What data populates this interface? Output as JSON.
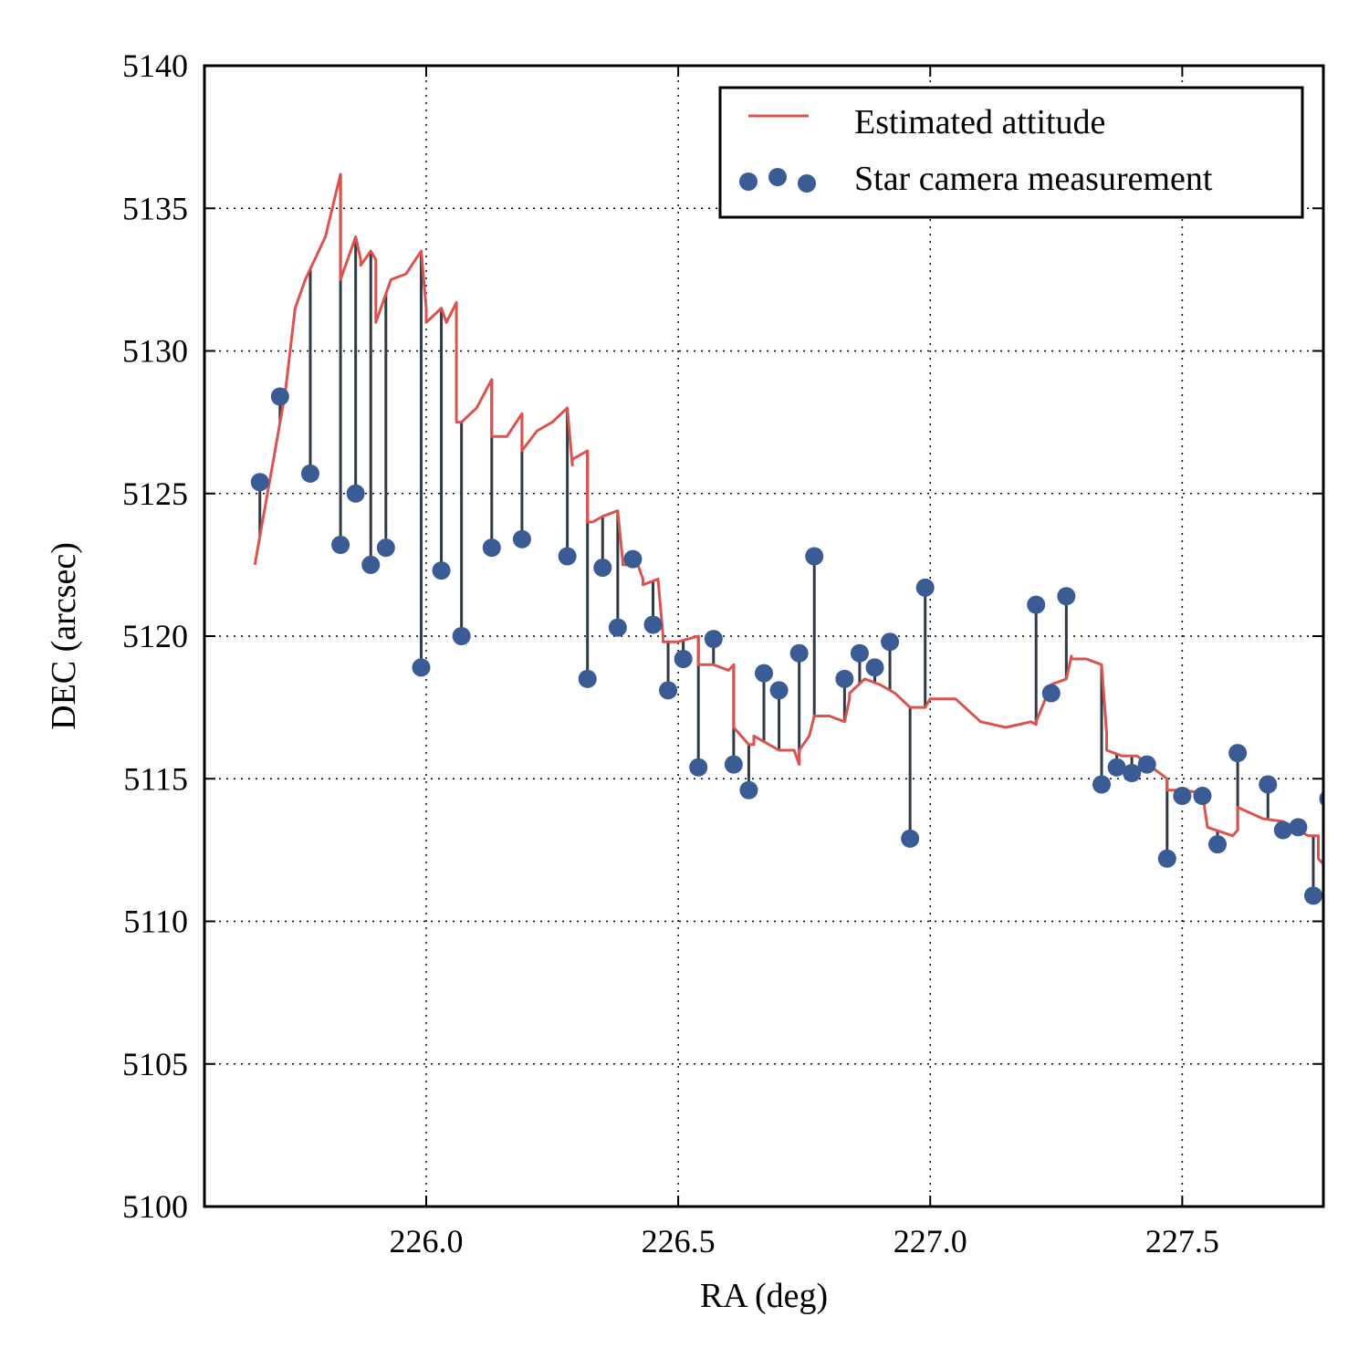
{
  "chart_data": {
    "type": "line",
    "xlabel": "RA (deg)",
    "ylabel": "DEC (arcsec)",
    "xlim": [
      225.56,
      227.78
    ],
    "ylim": [
      5100,
      5140
    ],
    "xticks": [
      "226.0",
      "226.5",
      "227.0",
      "227.5"
    ],
    "xtick_values": [
      226.0,
      226.5,
      227.0,
      227.5
    ],
    "yticks": [
      "5100",
      "5105",
      "5110",
      "5115",
      "5120",
      "5125",
      "5130",
      "5135",
      "5140"
    ],
    "ytick_values": [
      5100,
      5105,
      5110,
      5115,
      5120,
      5125,
      5130,
      5135,
      5140
    ],
    "grid": true,
    "legend_position": "top-right",
    "series": [
      {
        "name": "Estimated attitude",
        "kind": "line",
        "color": "#d9534f",
        "x": [
          225.66,
          225.68,
          225.72,
          225.74,
          225.76,
          225.8,
          225.83,
          225.83,
          225.86,
          225.87,
          225.87,
          225.89,
          225.9,
          225.9,
          225.93,
          225.96,
          225.99,
          226.0,
          226.0,
          226.03,
          226.04,
          226.06,
          226.06,
          226.07,
          226.1,
          226.13,
          226.13,
          226.16,
          226.19,
          226.19,
          226.22,
          226.25,
          226.28,
          226.29,
          226.29,
          226.32,
          226.32,
          226.33,
          226.35,
          226.38,
          226.39,
          226.39,
          226.42,
          226.43,
          226.43,
          226.46,
          226.47,
          226.47,
          226.5,
          226.54,
          226.54,
          226.57,
          226.6,
          226.61,
          226.61,
          226.64,
          226.65,
          226.65,
          226.7,
          226.73,
          226.74,
          226.74,
          226.76,
          226.77,
          226.8,
          226.83,
          226.84,
          226.84,
          226.87,
          226.9,
          226.93,
          226.96,
          226.96,
          226.99,
          227.0,
          227.05,
          227.1,
          227.15,
          227.2,
          227.21,
          227.21,
          227.24,
          227.27,
          227.28,
          227.28,
          227.31,
          227.34,
          227.35,
          227.35,
          227.38,
          227.41,
          227.44,
          227.47,
          227.47,
          227.5,
          227.54,
          227.55,
          227.6,
          227.61,
          227.61,
          227.66,
          227.7,
          227.75,
          227.77,
          227.77,
          227.78
        ],
        "y": [
          5122.5,
          5124.5,
          5128.5,
          5131.5,
          5132.5,
          5134.0,
          5136.2,
          5132.5,
          5134.0,
          5133.2,
          5133.0,
          5133.5,
          5133.2,
          5131.0,
          5132.5,
          5132.7,
          5133.5,
          5131.5,
          5131.0,
          5131.5,
          5131.0,
          5131.7,
          5127.5,
          5127.5,
          5128.0,
          5129.0,
          5127.0,
          5127.0,
          5127.8,
          5126.5,
          5127.2,
          5127.5,
          5128.0,
          5126.0,
          5126.2,
          5126.5,
          5124.0,
          5124.0,
          5124.2,
          5124.4,
          5122.6,
          5122.5,
          5122.5,
          5122.0,
          5121.8,
          5122.0,
          5120.0,
          5119.8,
          5119.8,
          5120.0,
          5119.0,
          5119.0,
          5118.8,
          5119.0,
          5116.8,
          5116.2,
          5116.2,
          5116.5,
          5116.0,
          5116.0,
          5115.5,
          5116.0,
          5116.5,
          5117.2,
          5117.2,
          5117.0,
          5117.8,
          5118.0,
          5118.5,
          5118.3,
          5118.0,
          5117.5,
          5117.5,
          5117.5,
          5117.8,
          5117.8,
          5117.0,
          5116.8,
          5117.0,
          5116.9,
          5117.0,
          5118.3,
          5118.5,
          5119.3,
          5119.2,
          5119.2,
          5119.0,
          5116.6,
          5116.0,
          5115.8,
          5115.8,
          5115.4,
          5115.0,
          5114.6,
          5114.6,
          5114.5,
          5113.3,
          5113.0,
          5113.2,
          5114.0,
          5113.6,
          5113.5,
          5113.0,
          5113.0,
          5112.2,
          5112.0
        ]
      },
      {
        "name": "Star camera measurement",
        "kind": "scatter",
        "color": "#3b5b95",
        "x": [
          225.67,
          225.71,
          225.77,
          225.83,
          225.86,
          225.89,
          225.92,
          225.99,
          226.03,
          226.07,
          226.13,
          226.19,
          226.28,
          226.32,
          226.35,
          226.38,
          226.41,
          226.45,
          226.48,
          226.51,
          226.54,
          226.57,
          226.61,
          226.64,
          226.67,
          226.7,
          226.74,
          226.77,
          226.83,
          226.86,
          226.89,
          226.92,
          226.96,
          226.99,
          227.21,
          227.24,
          227.27,
          227.34,
          227.37,
          227.4,
          227.43,
          227.47,
          227.5,
          227.54,
          227.57,
          227.61,
          227.67,
          227.7,
          227.73,
          227.76,
          227.79
        ],
        "y": [
          5125.4,
          5128.4,
          5125.7,
          5123.2,
          5125.0,
          5122.5,
          5123.1,
          5118.9,
          5122.3,
          5120.0,
          5123.1,
          5123.4,
          5122.8,
          5118.5,
          5122.4,
          5120.3,
          5122.7,
          5120.4,
          5118.1,
          5119.2,
          5115.4,
          5119.9,
          5115.5,
          5114.6,
          5118.7,
          5118.1,
          5119.4,
          5122.8,
          5118.5,
          5119.4,
          5118.9,
          5119.8,
          5112.9,
          5121.7,
          5121.1,
          5118.0,
          5121.4,
          5114.8,
          5115.4,
          5115.2,
          5115.5,
          5112.2,
          5114.4,
          5114.4,
          5112.7,
          5115.9,
          5114.8,
          5113.2,
          5113.3,
          5110.9,
          5114.3
        ]
      }
    ]
  }
}
